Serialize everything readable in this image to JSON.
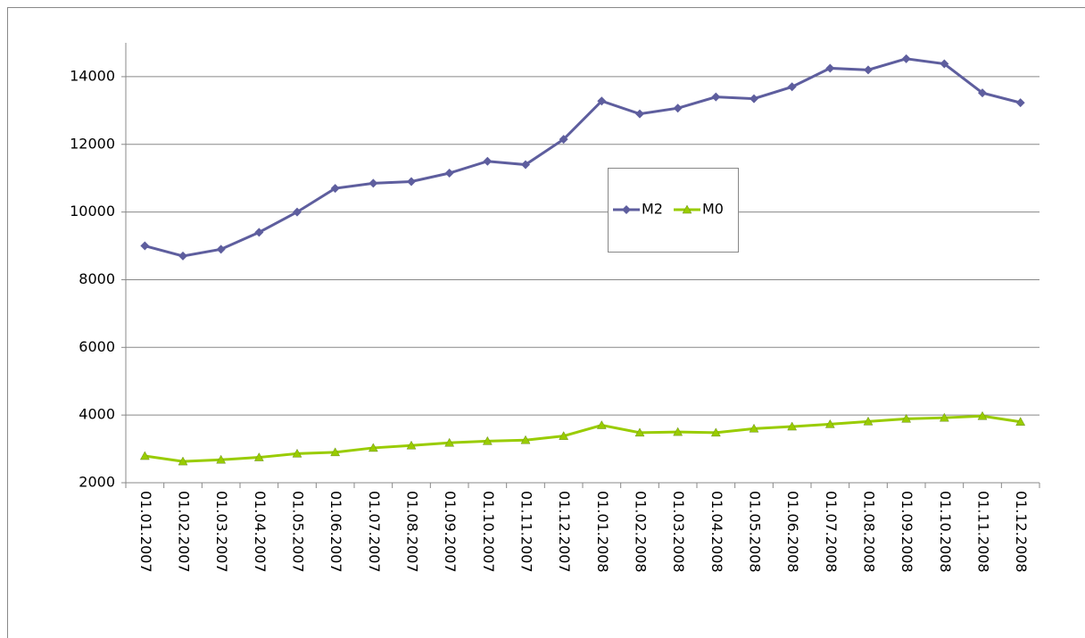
{
  "chart_data": {
    "type": "line",
    "categories": [
      "01.01.2007",
      "01.02.2007",
      "01.03.2007",
      "01.04.2007",
      "01.05.2007",
      "01.06.2007",
      "01.07.2007",
      "01.08.2007",
      "01.09.2007",
      "01.10.2007",
      "01.11.2007",
      "01.12.2007",
      "01.01.2008",
      "01.02.2008",
      "01.03.2008",
      "01.04.2008",
      "01.05.2008",
      "01.06.2008",
      "01.07.2008",
      "01.08.2008",
      "01.09.2008",
      "01.10.2008",
      "01.11.2008",
      "01.12.2008"
    ],
    "series": [
      {
        "name": "M2",
        "color": "#5e5e9e",
        "marker": "diamond",
        "values": [
          9000,
          8700,
          8900,
          9400,
          10000,
          10700,
          10850,
          10900,
          11150,
          11500,
          11400,
          12150,
          13280,
          12900,
          13070,
          13400,
          13350,
          13700,
          14250,
          14200,
          14530,
          14380,
          13520,
          13230
        ]
      },
      {
        "name": "M0",
        "color": "#99cc00",
        "marker": "triangle",
        "values": [
          2790,
          2630,
          2680,
          2750,
          2860,
          2900,
          3030,
          3100,
          3180,
          3230,
          3260,
          3380,
          3700,
          3480,
          3500,
          3480,
          3600,
          3660,
          3730,
          3810,
          3890,
          3920,
          3970,
          3800
        ]
      }
    ],
    "ylim": [
      2000,
      15000
    ],
    "yticks": [
      2000,
      4000,
      6000,
      8000,
      10000,
      12000,
      14000
    ],
    "grid": true,
    "legend": "center"
  }
}
